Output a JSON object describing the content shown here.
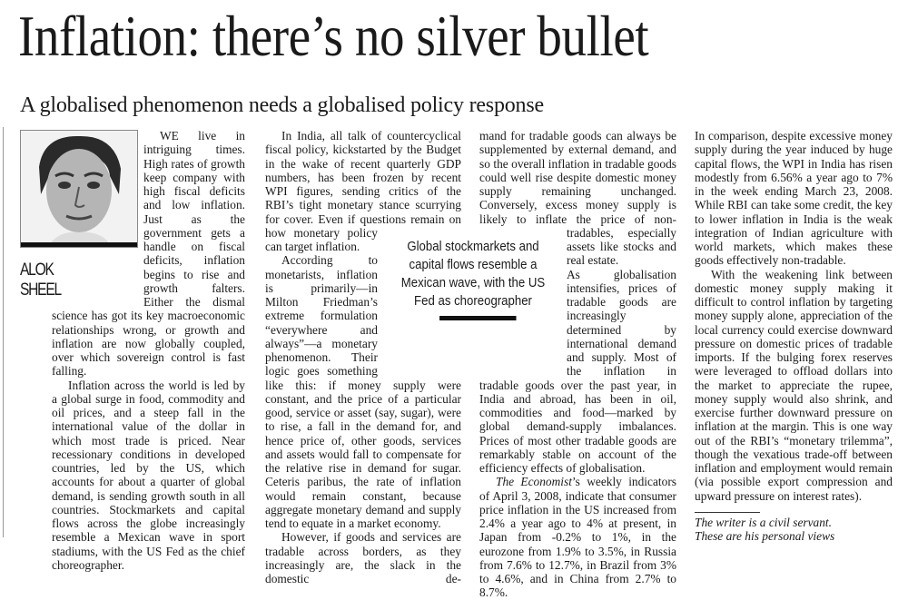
{
  "headline": "Inflation: there’s no silver bullet",
  "subheadline": "A globalised phenomenon needs a globalised policy response",
  "author": {
    "first": "ALOK",
    "last": "SHEEL"
  },
  "pull_quote": "Global stockmarkets and capital flows resemble a Mexican wave, with the US Fed as choreographer",
  "columns": [
    [
      {
        "text": "WE live in intriguing times. High rates of growth keep company with high fiscal deficits and low inflation. Just as the government gets a handle on fiscal deficits, inflation begins to rise and growth falters. Either the dismal science has got its key macroeconomic relationships wrong, or growth and inflation are now globally coupled, over which sovereign control is fast falling."
      },
      {
        "text": "Inflation across the world is led by a global surge in food, commodity and oil prices, and a steep fall in the international value of the dollar in which most trade is priced. Near recessionary conditions in developed countries, led by the US, which accounts for about a quarter of global demand, is sending growth south in all countries. Stockmarkets and capital flows across the globe increasingly resemble a Mexican wave in sport stadiums, with the US Fed as the chief choreographer."
      }
    ],
    [
      {
        "text": "In India, all talk of countercyclical fiscal policy, kickstarted by the Budget in the wake of recent quarterly GDP numbers, has been frozen by recent WPI figures, sending critics of the RBI’s tight monetary stance scurrying for cover. Even if questions remain on how monetary policy can target inflation."
      },
      {
        "text": "According to monetarists, inflation is primarily—in Milton Friedman’s extreme formulation “everywhere and always”—a monetary phenomenon. Their logic goes something like this: if money supply were constant, and the price of a particular good, service or asset (say, sugar), were to rise, a fall in the demand for, and hence price of, other goods, services and assets would fall to compensate for the relative rise in demand for sugar. Ceteris paribus, the rate of inflation would remain constant, because aggregate monetary demand and supply tend to equate in a market economy."
      },
      {
        "text": "However, if goods and services are tradable across borders, as they increasingly are, the slack in the domestic de-"
      }
    ],
    [
      {
        "text": "mand for tradable goods can always be supplemented by external demand, and so the overall inflation in tradable goods could well rise despite domestic money supply remaining unchanged. Conversely, excess money supply is likely to inflate the price of non-tradables, especially assets like stocks and real estate."
      },
      {
        "text": "As globalisation intensifies, prices of tradable goods are increasingly determined by international demand and supply. Most of the inflation in tradable goods over the past year, in India and abroad, has been in oil, commodities and food—marked by global demand-supply imbalances. Prices of most other tradable goods are remarkably stable on account of the efficiency effects of globalisation."
      },
      {
        "italic_lead": "The Economist",
        "text": "’s weekly indicators of April 3, 2008, indicate that consumer price inflation in the US increased from 2.4% a year ago to 4% at present, in Japan from -0.2% to 1%, in the eurozone from 1.9% to 3.5%, in Russia from 7.6% to 12.7%, in Brazil from 3% to 4.6%, and in China from 2.7% to 8.7%."
      }
    ],
    [
      {
        "text": "In comparison, despite excessive money supply during the year induced by huge capital flows, the WPI in India has risen modestly from 6.56% a year ago to 7% in the week ending March 23, 2008. While RBI can take some credit, the key to lower inflation in India is the weak integration of Indian agriculture with world markets, which makes these goods effectively non-tradable."
      },
      {
        "text": "With the weakening link between domestic money supply making it difficult to control inflation by targeting money supply alone, appreciation of the local currency could exercise downward pressure on domestic prices of tradable imports. If the bulging forex reserves were leveraged to offload dollars into the market to appreciate the rupee, money supply would also shrink, and exercise further downward pressure on inflation at the margin. This is one way out of the RBI’s “monetary trilemma”, though the vexatious trade-off between inflation and employment would remain (via possible export compression and upward pressure on interest rates)."
      }
    ]
  ],
  "footnote": [
    "The writer is a civil servant.",
    "These are his personal views"
  ]
}
